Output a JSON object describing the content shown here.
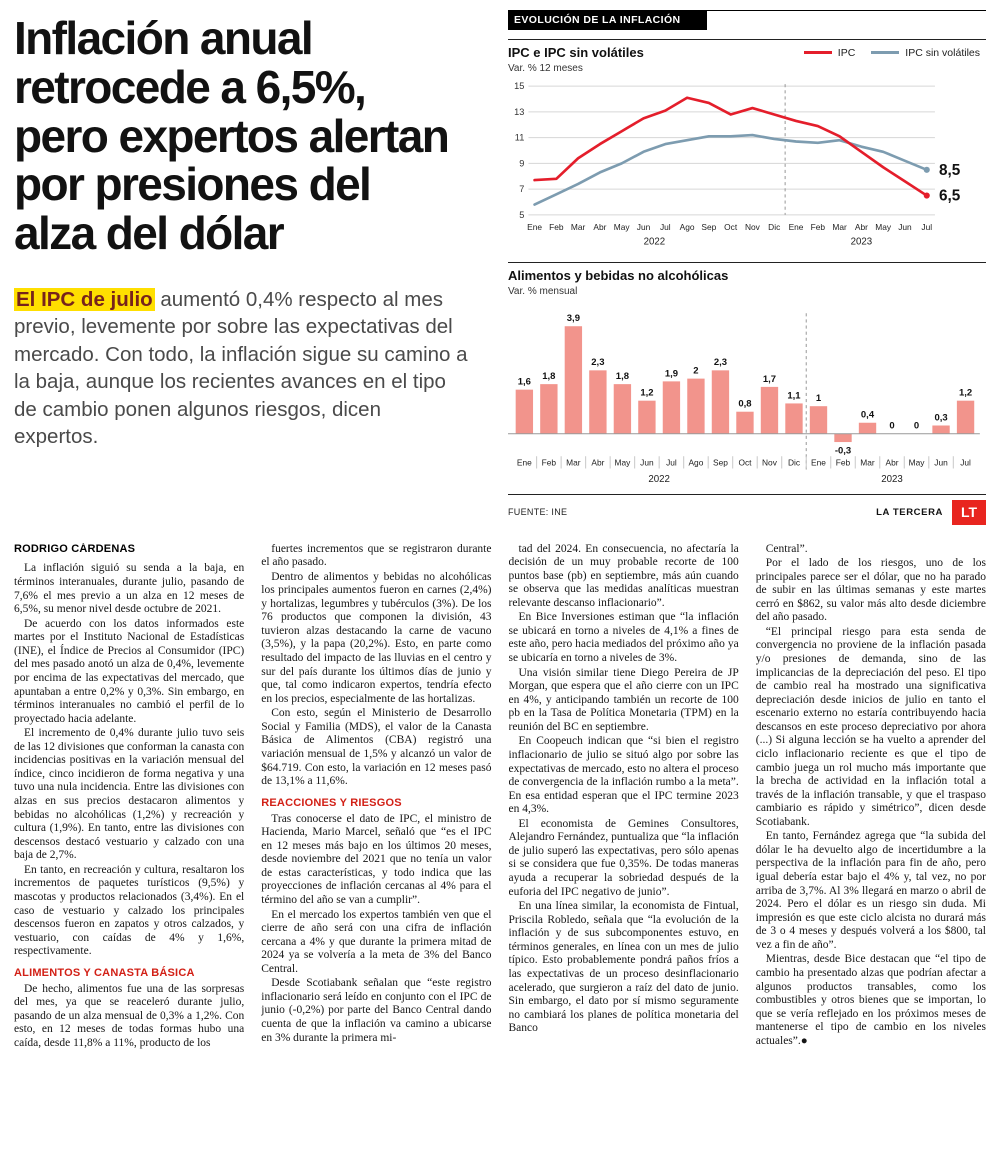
{
  "headline_lines": [
    "Inflación anual",
    "retrocede a 6,5%,",
    "pero expertos alertan",
    "por presiones del",
    "alza del dólar"
  ],
  "lead": {
    "highlight": "El IPC de julio",
    "rest": " aumentó 0,4% respecto al mes previo, levemente por sobre las expectativas del mercado. Con todo, la inflación sigue su camino a la baja, aunque los recientes avances en el tipo de cambio ponen algunos riesgos, dicen expertos."
  },
  "charts_panel": {
    "header": "EVOLUCIÓN DE LA INFLACIÓN",
    "source": "FUENTE: INE",
    "credit": "LA TERCERA",
    "logo": "LT"
  },
  "colors": {
    "accent_red": "#d22016",
    "highlight_yellow": "#ffdf00",
    "logo_red": "#e8251f"
  },
  "chart_data": [
    {
      "type": "line",
      "title": "IPC e IPC sin volátiles",
      "subtitle": "Var. % 12 meses",
      "x": [
        "Ene",
        "Feb",
        "Mar",
        "Abr",
        "May",
        "Jun",
        "Jul",
        "Ago",
        "Sep",
        "Oct",
        "Nov",
        "Dic",
        "Ene",
        "Feb",
        "Mar",
        "Abr",
        "May",
        "Jun",
        "Jul"
      ],
      "year_groups": [
        {
          "label": "2022",
          "from": 0,
          "to": 11
        },
        {
          "label": "2023",
          "from": 12,
          "to": 18
        }
      ],
      "ylim": [
        5,
        15
      ],
      "yticks": [
        5,
        7,
        9,
        11,
        13,
        15
      ],
      "series": [
        {
          "name": "IPC",
          "color": "#e41e2b",
          "end_label": "6,5",
          "values": [
            7.7,
            7.8,
            9.4,
            10.5,
            11.5,
            12.5,
            13.1,
            14.1,
            13.7,
            12.8,
            13.3,
            12.8,
            12.3,
            11.9,
            11.1,
            9.9,
            8.7,
            7.6,
            6.5
          ]
        },
        {
          "name": "IPC sin volátiles",
          "color": "#7d9cb0",
          "end_label": "8,5",
          "values": [
            5.8,
            6.6,
            7.4,
            8.3,
            9.0,
            9.9,
            10.5,
            10.8,
            11.1,
            11.1,
            11.2,
            10.9,
            10.7,
            10.6,
            10.8,
            10.3,
            9.9,
            9.2,
            8.5
          ]
        }
      ]
    },
    {
      "type": "bar",
      "title": "Alimentos y bebidas no alcohólicas",
      "subtitle": "Var. % mensual",
      "bar_color": "#f2948c",
      "categories": [
        "Ene",
        "Feb",
        "Mar",
        "Abr",
        "May",
        "Jun",
        "Jul",
        "Ago",
        "Sep",
        "Oct",
        "Nov",
        "Dic",
        "Ene",
        "Feb",
        "Mar",
        "Abr",
        "May",
        "Jun",
        "Jul"
      ],
      "year_groups": [
        {
          "label": "2022",
          "from": 0,
          "to": 11
        },
        {
          "label": "2023",
          "from": 12,
          "to": 18
        }
      ],
      "values": [
        1.6,
        1.8,
        3.9,
        2.3,
        1.8,
        1.2,
        1.9,
        2,
        2.3,
        0.8,
        1.7,
        1.1,
        1,
        -0.3,
        0.4,
        0,
        0,
        0.3,
        1.2
      ],
      "labels": [
        "1,6",
        "1,8",
        "3,9",
        "2,3",
        "1,8",
        "1,2",
        "1,9",
        "2",
        "2,3",
        "0,8",
        "1,7",
        "1,1",
        "1",
        "-0,3",
        "0,4",
        "0",
        "0",
        "0,3",
        "1,2"
      ]
    }
  ],
  "article": {
    "byline": "RODRIGO CÁRDENAS",
    "columns": [
      {
        "items": [
          {
            "t": "p",
            "text": "La inflación siguió su senda a la baja, en términos interanuales, durante julio, pasando de 7,6% el mes previo a un alza en 12 meses de 6,5%, su menor nivel desde octubre de 2021."
          },
          {
            "t": "p",
            "text": "De acuerdo con los datos informados este martes por el Instituto Nacional de Estadísticas (INE), el Índice de Precios al Consumidor (IPC) del mes pasado anotó un alza de 0,4%, levemente por encima de las expectativas del mercado, que apuntaban a entre 0,2% y 0,3%. Sin embargo, en términos interanuales no cambió el perfil de lo proyectado hacia adelante."
          },
          {
            "t": "p",
            "text": "El incremento de 0,4% durante julio tuvo seis de las 12 divisiones que conforman la canasta con incidencias positivas en la variación mensual del índice, cinco incidieron de forma negativa y una tuvo una nula incidencia. Entre las divisiones con alzas en sus precios destacaron alimentos y bebidas no alcohólicas (1,2%) y recreación y cultura (1,9%). En tanto, entre las divisiones con descensos destacó vestuario y calzado con una baja de 2,7%."
          },
          {
            "t": "p",
            "text": "En tanto, en recreación y cultura, resaltaron los incrementos de paquetes turísticos (9,5%) y mascotas y productos relacionados (3,4%). En el caso de vestuario y calzado los principales descensos fueron en zapatos y otros calzados, y vestuario, con caídas de 4% y 1,6%, respectivamente."
          },
          {
            "t": "h",
            "text": "ALIMENTOS Y CANASTA BÁSICA"
          },
          {
            "t": "p",
            "text": "De hecho, alimentos fue una de las sorpresas del mes, ya que se reaceleró durante julio, pasando de un alza mensual de 0,3% a 1,2%. Con esto, en 12 meses de todas formas hubo una caída, desde 11,8% a 11%, producto de los"
          }
        ]
      },
      {
        "items": [
          {
            "t": "p",
            "text": "fuertes incrementos que se registraron durante el año pasado."
          },
          {
            "t": "p",
            "text": "Dentro de alimentos y bebidas no alcohólicas los principales aumentos fueron en carnes (2,4%) y hortalizas, legumbres y tubérculos (3%). De los 76 productos que componen la división, 43 tuvieron alzas destacando la carne de vacuno (3,5%), y la papa (20,2%). Esto, en parte como resultado del impacto de las lluvias en el centro y sur del país durante los últimos días de junio y que, tal como indicaron expertos, tendría efecto en los precios, especialmente de las hortalizas."
          },
          {
            "t": "p",
            "text": "Con esto, según el Ministerio de Desarrollo Social y Familia (MDS), el valor de la Canasta Básica de Alimentos (CBA) registró una variación mensual de 1,5% y alcanzó un valor de $64.719. Con esto, la variación en 12 meses pasó de 13,1% a 11,6%."
          },
          {
            "t": "h",
            "text": "REACCIONES Y RIESGOS"
          },
          {
            "t": "p",
            "text": "Tras conocerse el dato de IPC, el ministro de Hacienda, Mario Marcel, señaló que “es el IPC en 12 meses más bajo en los últimos 20 meses, desde noviembre del 2021 que no tenía un valor de estas características, y todo indica que las proyecciones de inflación cercanas al 4% para el término del año se van a cumplir”."
          },
          {
            "t": "p",
            "text": "En el mercado los expertos también ven que el cierre de año será con una cifra de inflación cercana a 4% y que durante la primera mitad de 2024 ya se volvería a la meta de 3% del Banco Central."
          },
          {
            "t": "p",
            "text": "Desde Scotiabank señalan que “este registro inflacionario será leído en conjunto con el IPC de junio (-0,2%) por parte del Banco Central dando cuenta de que la inflación va camino a ubicarse en 3% durante la primera mi-"
          }
        ]
      },
      {
        "items": [
          {
            "t": "p",
            "text": "tad del 2024. En consecuencia, no afectaría la decisión de un muy probable recorte de 100 puntos base (pb) en septiembre, más aún cuando se observa que las medidas analíticas muestran relevante descanso inflacionario”."
          },
          {
            "t": "p",
            "text": "En Bice Inversiones estiman que “la inflación se ubicará en torno a niveles de 4,1% a fines de este año, pero hacia mediados del próximo año ya se ubicaría en torno a niveles de 3%."
          },
          {
            "t": "p",
            "text": "Una visión similar tiene Diego Pereira de JP Morgan, que espera que el año cierre con un IPC en 4%, y anticipando también un recorte de 100 pb en la Tasa de Política Monetaria (TPM) en la reunión del BC en septiembre."
          },
          {
            "t": "p",
            "text": "En Coopeuch indican que “si bien el registro inflacionario de julio se situó algo por sobre las expectativas de mercado, esto no altera el proceso de convergencia de la inflación rumbo a la meta”. En esa entidad esperan que el IPC termine 2023 en 4,3%."
          },
          {
            "t": "p",
            "text": "El economista de Gemines Consultores, Alejandro Fernández, puntualiza que “la inflación de julio superó las expectativas, pero sólo apenas si se considera que fue 0,35%. De todas maneras ayuda a recuperar la sobriedad después de la euforia del IPC negativo de junio”."
          },
          {
            "t": "p",
            "text": "En una línea similar, la economista de Fintual, Priscila Robledo, señala que “la evolución de la inflación y de sus subcomponentes estuvo, en términos generales, en línea con un mes de julio típico. Esto probablemente pondrá paños fríos a las expectativas de un proceso desinflacionario acelerado, que surgieron a raíz del dato de junio. Sin embargo, el dato por sí mismo seguramente no cambiará los planes de política monetaria del Banco"
          }
        ]
      },
      {
        "items": [
          {
            "t": "p",
            "text": "Central”."
          },
          {
            "t": "p",
            "text": "Por el lado de los riesgos, uno de los principales parece ser el dólar, que no ha parado de subir en las últimas semanas y este martes cerró en $862, su valor más alto desde diciembre del año pasado."
          },
          {
            "t": "p",
            "text": "“El principal riesgo para esta senda de convergencia no proviene de la inflación pasada y/o presiones de demanda, sino de las implicancias de la depreciación del peso. El tipo de cambio real ha mostrado una significativa depreciación desde inicios de julio en tanto el escenario externo no estaría contribuyendo hacia descansos en este proceso depreciativo por ahora (...) Si alguna lección se ha vuelto a aprender del ciclo inflacionario reciente es que el tipo de cambio juega un rol mucho más importante que la brecha de actividad en la inflación total a través de la inflación transable, y que el traspaso cambiario es rápido y simétrico”, dicen desde Scotiabank."
          },
          {
            "t": "p",
            "text": "En tanto, Fernández agrega que “la subida del dólar le ha devuelto algo de incertidumbre a la perspectiva de la inflación para fin de año, pero igual debería estar bajo el 4% y, tal vez, no por arriba de 3,7%. Al 3% llegará en marzo o abril de 2024. Pero el dólar es un riesgo sin duda. Mi impresión es que este ciclo alcista no durará más de 3 o 4 meses y después volverá a los $800, tal vez a fin de año”."
          },
          {
            "t": "p",
            "text": "Mientras, desde Bice destacan que “el tipo de cambio ha presentado alzas que podrían afectar a algunos productos transables, como los combustibles y otros bienes que se importan, lo que se vería reflejado en los próximos meses de mantenerse el tipo de cambio en los niveles actuales”.●"
          }
        ]
      }
    ]
  }
}
